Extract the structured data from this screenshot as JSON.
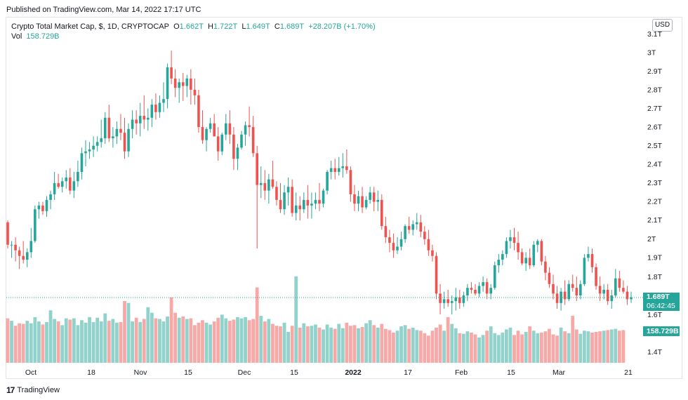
{
  "published": "Published on TradingView.com, Mar 14, 2022 17:17 UTC",
  "legend": {
    "title": "Crypto Total Market Cap, $, 1D, CRYPTOCAP",
    "o_label": "O",
    "o_val": "1.662T",
    "h_label": "H",
    "h_val": "1.722T",
    "l_label": "L",
    "l_val": "1.649T",
    "c_label": "C",
    "c_val": "1.689T",
    "change": "+28.207B (+1.70%)",
    "vol_label": "Vol",
    "vol_val": "158.729B"
  },
  "currency_button": "USD",
  "price_tag": {
    "value": "1.689T",
    "countdown": "06:42:45"
  },
  "volume_tag": "158.729B",
  "footer_logo": "17",
  "footer_text": "TradingView",
  "colors": {
    "up": "#26a69a",
    "down": "#ef5350",
    "vol_up": "#26a69a",
    "vol_down": "#ef5350"
  },
  "chart_data": {
    "type": "candlestick",
    "title": "Crypto Total Market Cap, $, 1D, CRYPTOCAP",
    "y_axis": {
      "ticks": [
        "3.1T",
        "3T",
        "2.9T",
        "2.8T",
        "2.7T",
        "2.6T",
        "2.5T",
        "2.4T",
        "2.3T",
        "2.2T",
        "2.1T",
        "2T",
        "1.9T",
        "1.8T",
        "1.6T",
        "1.4T"
      ]
    },
    "x_axis": {
      "ticks": [
        {
          "label": "Oct",
          "bold": false
        },
        {
          "label": "18",
          "bold": false
        },
        {
          "label": "Nov",
          "bold": false
        },
        {
          "label": "15",
          "bold": false
        },
        {
          "label": "Dec",
          "bold": false
        },
        {
          "label": "15",
          "bold": false
        },
        {
          "label": "2022",
          "bold": true
        },
        {
          "label": "17",
          "bold": false
        },
        {
          "label": "Feb",
          "bold": false
        },
        {
          "label": "15",
          "bold": false
        },
        {
          "label": "Mar",
          "bold": false
        },
        {
          "label": "21",
          "bold": false
        }
      ]
    },
    "last_close": 1.689,
    "ohlc": [
      [
        2.09,
        2.1,
        1.95,
        1.97
      ],
      [
        1.97,
        1.99,
        1.9,
        1.97
      ],
      [
        1.97,
        2.01,
        1.88,
        1.94
      ],
      [
        1.94,
        1.96,
        1.84,
        1.91
      ],
      [
        1.91,
        1.99,
        1.87,
        1.89
      ],
      [
        1.89,
        1.95,
        1.85,
        1.93
      ],
      [
        1.93,
        2.06,
        1.9,
        1.99
      ],
      [
        1.99,
        2.18,
        1.98,
        2.16
      ],
      [
        2.16,
        2.2,
        2.11,
        2.18
      ],
      [
        2.18,
        2.2,
        2.13,
        2.15
      ],
      [
        2.15,
        2.23,
        2.12,
        2.21
      ],
      [
        2.21,
        2.26,
        2.16,
        2.24
      ],
      [
        2.24,
        2.36,
        2.21,
        2.3
      ],
      [
        2.3,
        2.35,
        2.27,
        2.28
      ],
      [
        2.28,
        2.33,
        2.25,
        2.31
      ],
      [
        2.31,
        2.37,
        2.27,
        2.33
      ],
      [
        2.33,
        2.38,
        2.24,
        2.26
      ],
      [
        2.26,
        2.36,
        2.22,
        2.31
      ],
      [
        2.31,
        2.42,
        2.28,
        2.36
      ],
      [
        2.36,
        2.49,
        2.32,
        2.46
      ],
      [
        2.46,
        2.53,
        2.39,
        2.47
      ],
      [
        2.47,
        2.52,
        2.43,
        2.48
      ],
      [
        2.48,
        2.55,
        2.44,
        2.5
      ],
      [
        2.5,
        2.55,
        2.47,
        2.52
      ],
      [
        2.52,
        2.64,
        2.49,
        2.54
      ],
      [
        2.54,
        2.68,
        2.51,
        2.65
      ],
      [
        2.65,
        2.72,
        2.52,
        2.54
      ],
      [
        2.54,
        2.6,
        2.49,
        2.55
      ],
      [
        2.55,
        2.63,
        2.51,
        2.59
      ],
      [
        2.59,
        2.67,
        2.53,
        2.57
      ],
      [
        2.57,
        2.65,
        2.43,
        2.47
      ],
      [
        2.47,
        2.62,
        2.44,
        2.59
      ],
      [
        2.59,
        2.69,
        2.54,
        2.64
      ],
      [
        2.64,
        2.69,
        2.56,
        2.62
      ],
      [
        2.62,
        2.73,
        2.55,
        2.66
      ],
      [
        2.66,
        2.77,
        2.59,
        2.64
      ],
      [
        2.64,
        2.7,
        2.58,
        2.65
      ],
      [
        2.65,
        2.75,
        2.6,
        2.72
      ],
      [
        2.72,
        2.78,
        2.64,
        2.68
      ],
      [
        2.68,
        2.77,
        2.65,
        2.73
      ],
      [
        2.73,
        2.84,
        2.68,
        2.75
      ],
      [
        2.75,
        2.94,
        2.7,
        2.92
      ],
      [
        2.92,
        3.01,
        2.83,
        2.86
      ],
      [
        2.86,
        2.91,
        2.76,
        2.81
      ],
      [
        2.81,
        2.86,
        2.73,
        2.84
      ],
      [
        2.84,
        2.89,
        2.74,
        2.82
      ],
      [
        2.82,
        2.88,
        2.76,
        2.86
      ],
      [
        2.86,
        2.91,
        2.72,
        2.8
      ],
      [
        2.8,
        2.86,
        2.72,
        2.77
      ],
      [
        2.77,
        2.8,
        2.57,
        2.6
      ],
      [
        2.6,
        2.69,
        2.51,
        2.53
      ],
      [
        2.53,
        2.6,
        2.47,
        2.59
      ],
      [
        2.59,
        2.65,
        2.57,
        2.62
      ],
      [
        2.62,
        2.67,
        2.55,
        2.55
      ],
      [
        2.55,
        2.6,
        2.42,
        2.47
      ],
      [
        2.47,
        2.57,
        2.45,
        2.56
      ],
      [
        2.56,
        2.67,
        2.53,
        2.62
      ],
      [
        2.62,
        2.69,
        2.51,
        2.56
      ],
      [
        2.56,
        2.6,
        2.37,
        2.43
      ],
      [
        2.43,
        2.51,
        2.37,
        2.49
      ],
      [
        2.49,
        2.58,
        2.48,
        2.56
      ],
      [
        2.56,
        2.63,
        2.5,
        2.61
      ],
      [
        2.61,
        2.71,
        2.55,
        2.6
      ],
      [
        2.6,
        2.66,
        2.44,
        2.46
      ],
      [
        2.46,
        2.5,
        1.95,
        2.29
      ],
      [
        2.29,
        2.39,
        2.22,
        2.3
      ],
      [
        2.3,
        2.37,
        2.21,
        2.26
      ],
      [
        2.26,
        2.35,
        2.19,
        2.32
      ],
      [
        2.32,
        2.42,
        2.27,
        2.28
      ],
      [
        2.28,
        2.31,
        2.18,
        2.21
      ],
      [
        2.21,
        2.3,
        2.14,
        2.16
      ],
      [
        2.16,
        2.29,
        2.13,
        2.25
      ],
      [
        2.25,
        2.33,
        2.18,
        2.28
      ],
      [
        2.28,
        2.32,
        2.12,
        2.14
      ],
      [
        2.14,
        2.25,
        2.1,
        2.18
      ],
      [
        2.18,
        2.23,
        2.1,
        2.16
      ],
      [
        2.16,
        2.25,
        2.14,
        2.21
      ],
      [
        2.21,
        2.29,
        2.11,
        2.18
      ],
      [
        2.18,
        2.25,
        2.11,
        2.19
      ],
      [
        2.19,
        2.25,
        2.16,
        2.21
      ],
      [
        2.21,
        2.3,
        2.15,
        2.19
      ],
      [
        2.19,
        2.27,
        2.17,
        2.26
      ],
      [
        2.26,
        2.37,
        2.24,
        2.36
      ],
      [
        2.36,
        2.42,
        2.32,
        2.38
      ],
      [
        2.38,
        2.43,
        2.32,
        2.36
      ],
      [
        2.36,
        2.44,
        2.34,
        2.38
      ],
      [
        2.38,
        2.46,
        2.33,
        2.39
      ],
      [
        2.39,
        2.48,
        2.35,
        2.37
      ],
      [
        2.37,
        2.39,
        2.2,
        2.24
      ],
      [
        2.24,
        2.29,
        2.15,
        2.19
      ],
      [
        2.19,
        2.26,
        2.15,
        2.23
      ],
      [
        2.23,
        2.28,
        2.14,
        2.17
      ],
      [
        2.17,
        2.23,
        2.16,
        2.21
      ],
      [
        2.21,
        2.28,
        2.19,
        2.25
      ],
      [
        2.25,
        2.28,
        2.15,
        2.2
      ],
      [
        2.2,
        2.26,
        2.15,
        2.21
      ],
      [
        2.21,
        2.24,
        2.05,
        2.07
      ],
      [
        2.07,
        2.12,
        1.98,
        2.01
      ],
      [
        2.01,
        2.05,
        1.93,
        1.98
      ],
      [
        1.98,
        2.03,
        1.9,
        1.94
      ],
      [
        1.94,
        2.01,
        1.92,
        1.96
      ],
      [
        1.96,
        2.04,
        1.94,
        2.0
      ],
      [
        2.0,
        2.08,
        1.98,
        2.07
      ],
      [
        2.07,
        2.12,
        2.03,
        2.05
      ],
      [
        2.05,
        2.1,
        2.02,
        2.08
      ],
      [
        2.08,
        2.14,
        2.05,
        2.09
      ],
      [
        2.09,
        2.13,
        2.01,
        2.04
      ],
      [
        2.04,
        2.07,
        1.97,
        2.0
      ],
      [
        2.0,
        2.05,
        1.91,
        1.94
      ],
      [
        1.94,
        1.97,
        1.88,
        1.91
      ],
      [
        1.91,
        1.93,
        1.68,
        1.71
      ],
      [
        1.71,
        1.76,
        1.6,
        1.66
      ],
      [
        1.66,
        1.72,
        1.63,
        1.68
      ],
      [
        1.68,
        1.73,
        1.64,
        1.66
      ],
      [
        1.66,
        1.7,
        1.6,
        1.67
      ],
      [
        1.67,
        1.74,
        1.62,
        1.69
      ],
      [
        1.69,
        1.73,
        1.63,
        1.66
      ],
      [
        1.66,
        1.72,
        1.64,
        1.7
      ],
      [
        1.7,
        1.76,
        1.67,
        1.74
      ],
      [
        1.74,
        1.77,
        1.71,
        1.73
      ],
      [
        1.73,
        1.76,
        1.7,
        1.71
      ],
      [
        1.71,
        1.77,
        1.69,
        1.75
      ],
      [
        1.75,
        1.8,
        1.72,
        1.77
      ],
      [
        1.77,
        1.79,
        1.68,
        1.71
      ],
      [
        1.71,
        1.76,
        1.68,
        1.74
      ],
      [
        1.74,
        1.88,
        1.73,
        1.86
      ],
      [
        1.86,
        1.92,
        1.82,
        1.89
      ],
      [
        1.89,
        1.94,
        1.86,
        1.92
      ],
      [
        1.92,
        2.01,
        1.9,
        1.99
      ],
      [
        1.99,
        2.05,
        1.95,
        2.01
      ],
      [
        2.01,
        2.06,
        1.94,
        1.98
      ],
      [
        1.98,
        2.04,
        1.89,
        1.93
      ],
      [
        1.93,
        1.95,
        1.86,
        1.87
      ],
      [
        1.87,
        1.93,
        1.83,
        1.9
      ],
      [
        1.9,
        1.95,
        1.84,
        1.86
      ],
      [
        1.86,
        1.99,
        1.85,
        1.97
      ],
      [
        1.97,
        2.0,
        1.93,
        1.99
      ],
      [
        1.99,
        2.0,
        1.86,
        1.88
      ],
      [
        1.88,
        1.91,
        1.78,
        1.82
      ],
      [
        1.82,
        1.85,
        1.74,
        1.76
      ],
      [
        1.76,
        1.81,
        1.68,
        1.71
      ],
      [
        1.71,
        1.75,
        1.63,
        1.66
      ],
      [
        1.66,
        1.74,
        1.62,
        1.72
      ],
      [
        1.72,
        1.78,
        1.65,
        1.68
      ],
      [
        1.68,
        1.78,
        1.67,
        1.76
      ],
      [
        1.76,
        1.81,
        1.72,
        1.74
      ],
      [
        1.74,
        1.8,
        1.67,
        1.7
      ],
      [
        1.7,
        1.78,
        1.68,
        1.76
      ],
      [
        1.76,
        1.92,
        1.75,
        1.9
      ],
      [
        1.9,
        1.96,
        1.88,
        1.92
      ],
      [
        1.92,
        1.95,
        1.82,
        1.85
      ],
      [
        1.85,
        1.87,
        1.73,
        1.75
      ],
      [
        1.75,
        1.8,
        1.67,
        1.71
      ],
      [
        1.71,
        1.76,
        1.68,
        1.73
      ],
      [
        1.73,
        1.76,
        1.65,
        1.67
      ],
      [
        1.67,
        1.73,
        1.63,
        1.7
      ],
      [
        1.7,
        1.84,
        1.69,
        1.79
      ],
      [
        1.79,
        1.83,
        1.72,
        1.74
      ],
      [
        1.74,
        1.78,
        1.71,
        1.72
      ],
      [
        1.72,
        1.75,
        1.65,
        1.68
      ],
      [
        1.68,
        1.72,
        1.66,
        1.69
      ]
    ],
    "volume": [
      0.72,
      0.68,
      0.6,
      0.64,
      0.63,
      0.68,
      0.64,
      0.74,
      0.67,
      0.62,
      0.66,
      0.85,
      0.71,
      0.67,
      0.61,
      0.72,
      0.7,
      0.72,
      0.61,
      0.69,
      0.65,
      0.74,
      0.66,
      0.73,
      0.67,
      0.8,
      0.68,
      0.71,
      0.65,
      0.66,
      1.0,
      0.97,
      0.67,
      0.73,
      0.66,
      0.71,
      0.9,
      0.81,
      0.72,
      0.71,
      0.67,
      0.75,
      1.06,
      0.81,
      0.73,
      0.75,
      0.71,
      0.72,
      0.61,
      0.65,
      0.69,
      0.65,
      0.62,
      0.67,
      0.73,
      0.78,
      0.72,
      0.68,
      0.7,
      0.74,
      0.72,
      0.74,
      0.69,
      0.71,
      1.22,
      0.76,
      0.67,
      0.71,
      0.63,
      0.6,
      0.59,
      0.65,
      0.5,
      0.6,
      1.4,
      0.57,
      0.64,
      0.59,
      0.6,
      0.62,
      0.57,
      0.54,
      0.62,
      0.57,
      0.55,
      0.63,
      0.56,
      0.65,
      0.6,
      0.61,
      0.56,
      0.58,
      0.64,
      0.69,
      0.61,
      0.57,
      0.63,
      0.55,
      0.53,
      0.49,
      0.52,
      0.59,
      0.61,
      0.55,
      0.57,
      0.53,
      0.52,
      0.48,
      0.44,
      0.52,
      0.57,
      0.62,
      0.52,
      0.74,
      0.63,
      0.56,
      0.48,
      0.47,
      0.51,
      0.49,
      0.46,
      0.41,
      0.45,
      0.52,
      0.59,
      0.48,
      0.45,
      0.49,
      0.54,
      0.57,
      0.45,
      0.52,
      0.46,
      0.5,
      0.59,
      0.52,
      0.48,
      0.49,
      0.51,
      0.55,
      0.46,
      0.44,
      0.57,
      0.51,
      0.48,
      0.76,
      0.54,
      0.47,
      0.52,
      0.51,
      0.49,
      0.5,
      0.51,
      0.52,
      0.53,
      0.54,
      0.55,
      0.52,
      0.53
    ]
  }
}
